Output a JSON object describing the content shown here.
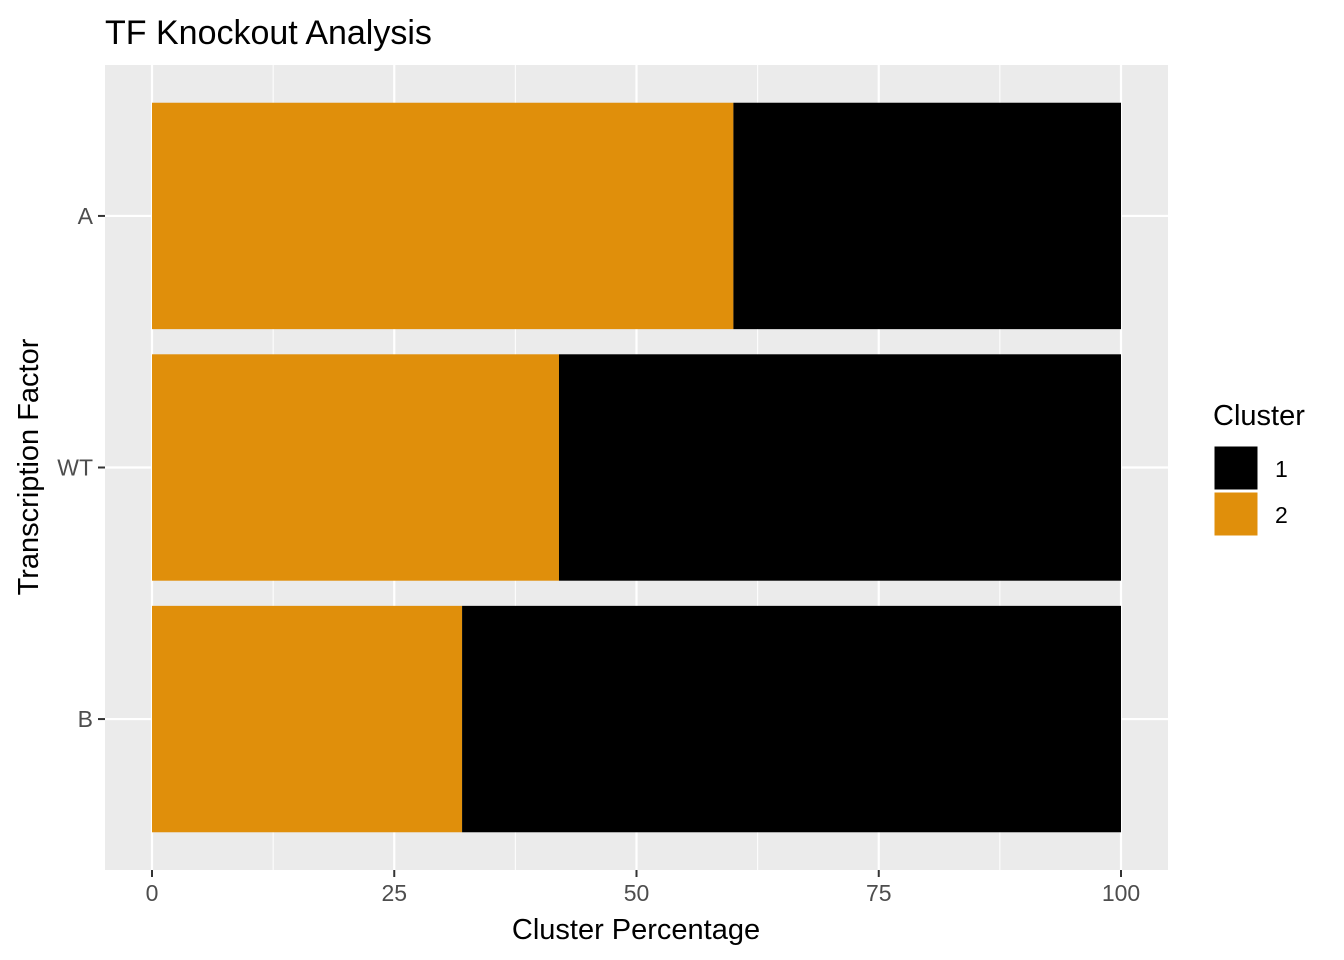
{
  "chart_data": {
    "type": "bar",
    "orientation": "horizontal",
    "stacked": true,
    "title": "TF Knockout Analysis",
    "xlabel": "Cluster Percentage",
    "ylabel": "Transcription Factor",
    "categories": [
      "A",
      "WT",
      "B"
    ],
    "series": [
      {
        "name": "2",
        "color": "#E08F0B",
        "values": [
          60,
          42,
          32
        ]
      },
      {
        "name": "1",
        "color": "#000000",
        "values": [
          40,
          58,
          68
        ]
      }
    ],
    "xlim": [
      0,
      100
    ],
    "xticks": [
      0,
      25,
      50,
      75,
      100
    ],
    "xtick_labels": [
      "0",
      "25",
      "50",
      "75",
      "100"
    ],
    "grid": true,
    "legend": {
      "title": "Cluster",
      "position": "right",
      "entries": [
        {
          "label": "1",
          "color": "#000000"
        },
        {
          "label": "2",
          "color": "#E08F0B"
        }
      ]
    }
  }
}
